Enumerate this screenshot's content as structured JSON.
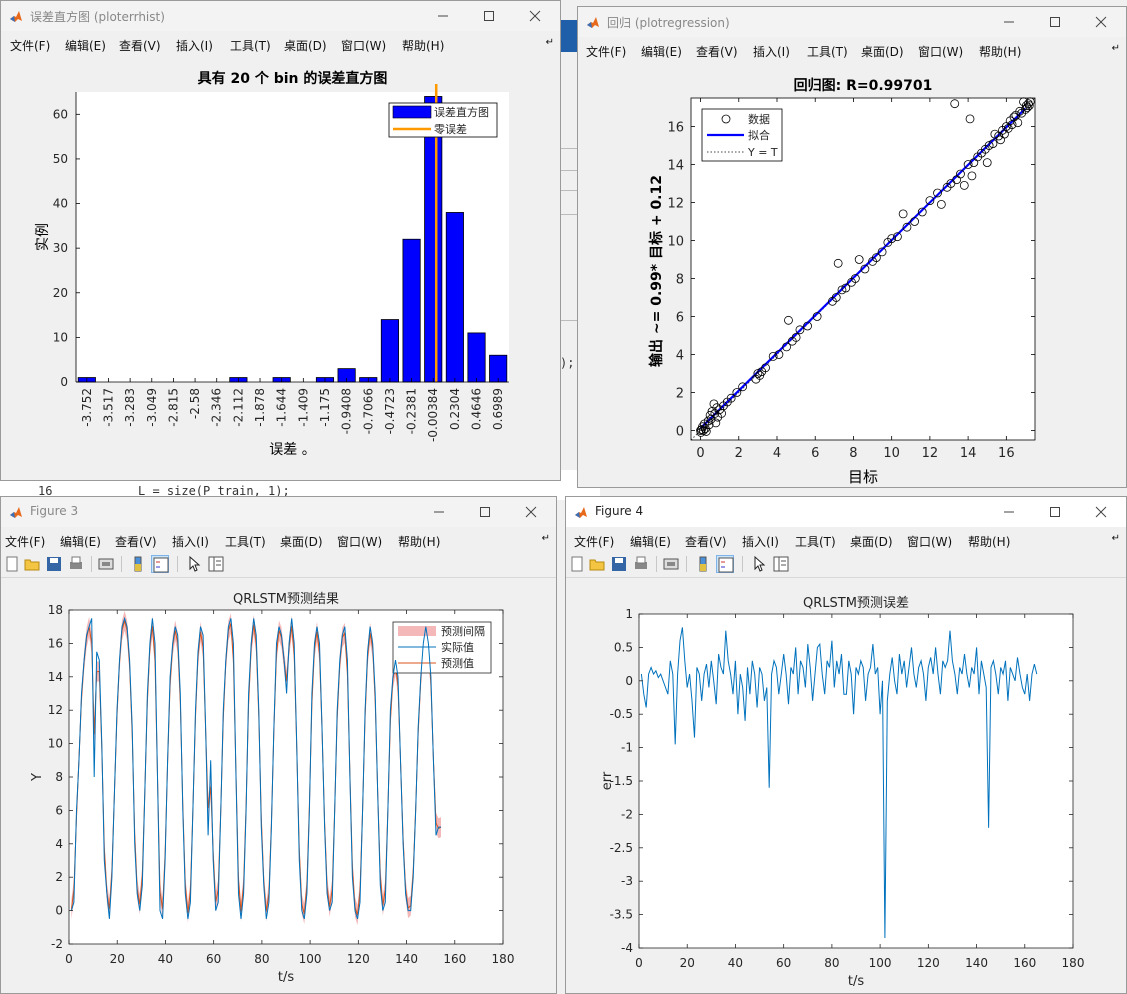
{
  "menu": [
    "文件(F)",
    "编辑(E)",
    "查看(V)",
    "插入(I)",
    "工具(T)",
    "桌面(D)",
    "窗口(W)",
    "帮助(H)"
  ],
  "menu_overflow": "↵",
  "background": {
    "code_line_number": "16",
    "code_text": "L = size(P_train, 1);",
    "code_fragment": ");"
  },
  "windows": {
    "hist": {
      "title": "误差直方图 (ploterrhist)",
      "chart_data": {
        "type": "bar",
        "title": "具有 20 个 bin 的误差直方图",
        "xlabel": "误差 。",
        "ylabel": "实例",
        "categories": [
          "-3.752",
          "-3.517",
          "-3.283",
          "-3.049",
          "-2.815",
          "-2.58",
          "-2.346",
          "-2.112",
          "-1.878",
          "-1.644",
          "-1.409",
          "-1.175",
          "-0.9408",
          "-0.7066",
          "-0.4723",
          "-0.2381",
          "-0.00384",
          "0.2304",
          "0.4646",
          "0.6989"
        ],
        "values": [
          1,
          0,
          0,
          0,
          0,
          0,
          0,
          1,
          0,
          1,
          0,
          1,
          3,
          1,
          14,
          32,
          64,
          38,
          11,
          6
        ],
        "ylim": [
          0,
          65
        ],
        "yticks": [
          0,
          10,
          20,
          30,
          40,
          50,
          60
        ],
        "zero_error_at": -0.00384,
        "legend": [
          "误差直方图",
          "零误差"
        ],
        "legend_position": "top-right",
        "colors": {
          "bar": "#0000ff",
          "zero_line": "#ff9900"
        }
      }
    },
    "regression": {
      "title": "回归 (plotregression)",
      "chart_data": {
        "type": "scatter",
        "title": "回归图: R=0.99701",
        "xlabel": "目标",
        "ylabel": "输出 ~= 0.99* 目标 + 0.12",
        "xlim": [
          -0.5,
          17.5
        ],
        "ylim": [
          -0.5,
          17.5
        ],
        "xticks": [
          0,
          2,
          4,
          6,
          8,
          10,
          12,
          14,
          16
        ],
        "yticks": [
          0,
          2,
          4,
          6,
          8,
          10,
          12,
          14,
          16
        ],
        "fit": {
          "slope": 0.99,
          "intercept": 0.12
        },
        "legend": [
          "数据",
          "拟合",
          "Y = T"
        ],
        "legend_position": "top-left",
        "points": [
          [
            0,
            0
          ],
          [
            0.02,
            -0.1
          ],
          [
            0.05,
            0.05
          ],
          [
            0.1,
            0.2
          ],
          [
            0.15,
            0
          ],
          [
            0.2,
            0.35
          ],
          [
            0.25,
            0.1
          ],
          [
            0.3,
            -0.05
          ],
          [
            0.4,
            0.5
          ],
          [
            0.45,
            0.3
          ],
          [
            0.5,
            0.8
          ],
          [
            0.55,
            0.6
          ],
          [
            0.6,
            1.0
          ],
          [
            0.7,
            1.4
          ],
          [
            0.75,
            0.9
          ],
          [
            0.8,
            0.4
          ],
          [
            0.85,
            1.2
          ],
          [
            0.9,
            0.7
          ],
          [
            1.0,
            1.1
          ],
          [
            1.1,
            0.9
          ],
          [
            1.2,
            1.3
          ],
          [
            1.4,
            1.5
          ],
          [
            1.6,
            1.7
          ],
          [
            1.9,
            2.0
          ],
          [
            2.2,
            2.3
          ],
          [
            2.9,
            2.7
          ],
          [
            3.0,
            3.0
          ],
          [
            3.1,
            2.9
          ],
          [
            3.2,
            3.1
          ],
          [
            3.4,
            3.3
          ],
          [
            3.8,
            3.9
          ],
          [
            4.1,
            4.0
          ],
          [
            4.5,
            4.4
          ],
          [
            4.6,
            5.8
          ],
          [
            4.8,
            4.7
          ],
          [
            5.0,
            4.9
          ],
          [
            5.2,
            5.3
          ],
          [
            5.6,
            5.5
          ],
          [
            6.1,
            6.0
          ],
          [
            6.9,
            6.8
          ],
          [
            7.1,
            7.0
          ],
          [
            7.2,
            8.8
          ],
          [
            7.4,
            7.4
          ],
          [
            7.6,
            7.5
          ],
          [
            7.9,
            7.8
          ],
          [
            8.1,
            8.0
          ],
          [
            8.3,
            9.0
          ],
          [
            8.6,
            8.5
          ],
          [
            9.0,
            8.9
          ],
          [
            9.2,
            9.1
          ],
          [
            9.5,
            9.4
          ],
          [
            9.8,
            9.9
          ],
          [
            10.0,
            10.1
          ],
          [
            10.3,
            10.2
          ],
          [
            10.6,
            11.4
          ],
          [
            10.8,
            10.7
          ],
          [
            11.2,
            11.0
          ],
          [
            11.6,
            11.5
          ],
          [
            12.0,
            12.1
          ],
          [
            12.4,
            12.5
          ],
          [
            12.6,
            11.9
          ],
          [
            12.9,
            12.8
          ],
          [
            13.1,
            13.0
          ],
          [
            13.3,
            17.2
          ],
          [
            13.4,
            13.2
          ],
          [
            13.6,
            13.5
          ],
          [
            13.8,
            12.9
          ],
          [
            14.0,
            14.0
          ],
          [
            14.1,
            16.4
          ],
          [
            14.2,
            13.4
          ],
          [
            14.3,
            14.1
          ],
          [
            14.5,
            14.4
          ],
          [
            14.7,
            14.6
          ],
          [
            14.9,
            14.8
          ],
          [
            15.0,
            14.1
          ],
          [
            15.1,
            15.0
          ],
          [
            15.3,
            15.1
          ],
          [
            15.4,
            15.6
          ],
          [
            15.6,
            15.5
          ],
          [
            15.7,
            15.3
          ],
          [
            15.8,
            15.8
          ],
          [
            15.9,
            15.6
          ],
          [
            16.0,
            16.0
          ],
          [
            16.1,
            15.9
          ],
          [
            16.2,
            16.3
          ],
          [
            16.3,
            16.1
          ],
          [
            16.4,
            16.5
          ],
          [
            16.5,
            16.6
          ],
          [
            16.6,
            16.2
          ],
          [
            16.7,
            16.8
          ],
          [
            16.8,
            16.7
          ],
          [
            16.9,
            17.3
          ],
          [
            17.0,
            16.9
          ],
          [
            17.05,
            17.1
          ],
          [
            17.1,
            17.0
          ],
          [
            17.15,
            17.2
          ],
          [
            17.2,
            17.1
          ],
          [
            17.25,
            17.3
          ]
        ]
      }
    },
    "fig3": {
      "title": "Figure 3",
      "chart_data": {
        "type": "line",
        "title": "QRLSTM预测结果",
        "xlabel": "t/s",
        "ylabel": "Y",
        "xlim": [
          0,
          180
        ],
        "ylim": [
          -2,
          18
        ],
        "xticks": [
          0,
          20,
          40,
          60,
          80,
          100,
          120,
          140,
          160,
          180
        ],
        "yticks": [
          -2,
          0,
          2,
          4,
          6,
          8,
          10,
          12,
          14,
          16,
          18
        ],
        "legend_position": "top-right",
        "series": [
          {
            "name": "预测间隔",
            "kind": "band",
            "color": "#f4b8b8",
            "width": 0.6
          },
          {
            "name": "实际值",
            "color": "#0072bd",
            "values": [
              0,
              0.5,
              6,
              9,
              13,
              15,
              16.5,
              17,
              17.5,
              8,
              15.5,
              15,
              10,
              3,
              1,
              -0.5,
              2,
              7,
              12,
              15,
              17,
              17.5,
              17,
              15,
              11,
              4,
              1,
              0,
              1.5,
              7,
              13,
              16,
              17.5,
              16,
              8,
              0,
              -0.5,
              3,
              9,
              14,
              16,
              17,
              16.5,
              13,
              6,
              1,
              -0.5,
              0.5,
              6,
              12,
              15.5,
              17,
              16.5,
              11,
              4.5,
              9,
              3,
              0,
              0.5,
              6,
              12,
              15,
              17,
              17.5,
              16,
              8,
              1,
              -0.5,
              1,
              6,
              13,
              16,
              17.5,
              16.5,
              12,
              5,
              1.5,
              -0.5,
              0.5,
              5,
              11,
              16,
              17,
              16.5,
              15,
              13,
              16,
              17.5,
              16,
              10,
              3,
              0,
              -0.5,
              1,
              6,
              13,
              16,
              17,
              16,
              11,
              5,
              1,
              0,
              0.5,
              6,
              12,
              15,
              16.5,
              17,
              15,
              8,
              2,
              0,
              -0.5,
              0.5,
              6,
              12,
              15.5,
              17,
              16,
              13,
              7,
              1.5,
              0,
              0.5,
              6,
              12,
              14,
              15,
              14,
              9,
              4,
              1,
              0,
              0,
              2,
              6,
              11,
              14,
              16,
              17,
              16,
              14,
              9,
              4.5,
              5,
              5
            ],
            "step": 1.05
          },
          {
            "name": "预测值",
            "color": "#d95319"
          }
        ]
      }
    },
    "fig4": {
      "title": "Figure 4",
      "chart_data": {
        "type": "line",
        "title": "QRLSTM预测误差",
        "xlabel": "t/s",
        "ylabel": "err",
        "xlim": [
          0,
          180
        ],
        "ylim": [
          -4,
          1
        ],
        "xticks": [
          0,
          20,
          40,
          60,
          80,
          100,
          120,
          140,
          160,
          180
        ],
        "yticks": [
          -4,
          -3.5,
          -3,
          -2.5,
          -2,
          -1.5,
          -1,
          -0.5,
          0,
          0.5,
          1
        ],
        "series": [
          {
            "name": "",
            "color": "#0072bd",
            "values": [
              0.1,
              -0.2,
              -0.4,
              0.1,
              0.2,
              0.1,
              0.15,
              0.05,
              0.1,
              0,
              -0.1,
              -0.2,
              0.3,
              0.1,
              -0.95,
              0.1,
              0.6,
              0.8,
              0.3,
              -0.1,
              0.1,
              -0.3,
              -0.85,
              0.2,
              0.1,
              -0.3,
              0.1,
              0.25,
              -0.1,
              0.3,
              0,
              -0.35,
              0.4,
              0.2,
              0.1,
              0.75,
              0.3,
              0.1,
              -0.2,
              0.3,
              -0.5,
              0.1,
              -0.1,
              -0.6,
              0.2,
              -0.2,
              0.3,
              0.1,
              -0.4,
              0.2,
              0.1,
              -0.3,
              -0.1,
              -1.6,
              0.1,
              0.3,
              0.2,
              -0.2,
              0.1,
              0.4,
              0.1,
              -0.35,
              0.2,
              0.1,
              0.5,
              -0.2,
              0.3,
              0.2,
              -0.1,
              0.55,
              0.2,
              -0.3,
              0.1,
              0.5,
              0.55,
              0.1,
              -0.2,
              0.3,
              0.2,
              0.6,
              -0.1,
              0.3,
              0.1,
              0.4,
              -0.2,
              -0.2,
              0.3,
              0.1,
              -0.5,
              0.2,
              0.1,
              0.3,
              0.2,
              -0.3,
              0.1,
              0.2,
              0.55,
              0.1,
              0.2,
              -0.5,
              0,
              -3.85,
              -0.3,
              0.1,
              0.35,
              0,
              -0.2,
              0.4,
              0.1,
              0.3,
              -0.1,
              0.2,
              0.5,
              0.1,
              -0.1,
              0.2,
              0.3,
              0.1,
              -0.3,
              0.2,
              0.35,
              0.1,
              0.5,
              0.1,
              -0.2,
              0.3,
              0.2,
              0.3,
              0.75,
              0.3,
              0.1,
              -0.2,
              0.2,
              0.1,
              0.4,
              0.1,
              -0.1,
              0.2,
              0.1,
              0.5,
              -0.2,
              0.3,
              0.1,
              -0.1,
              -2.2,
              0.2,
              0.3,
              0.1,
              -0.2,
              0.2,
              0.1,
              0.3,
              -0.3,
              0.2,
              0.1,
              0,
              0.35,
              0.1,
              -0.1,
              -0.2,
              0.1,
              -0.3,
              0.1,
              0.25,
              0.1
            ],
            "step": 1.0
          }
        ]
      }
    }
  }
}
